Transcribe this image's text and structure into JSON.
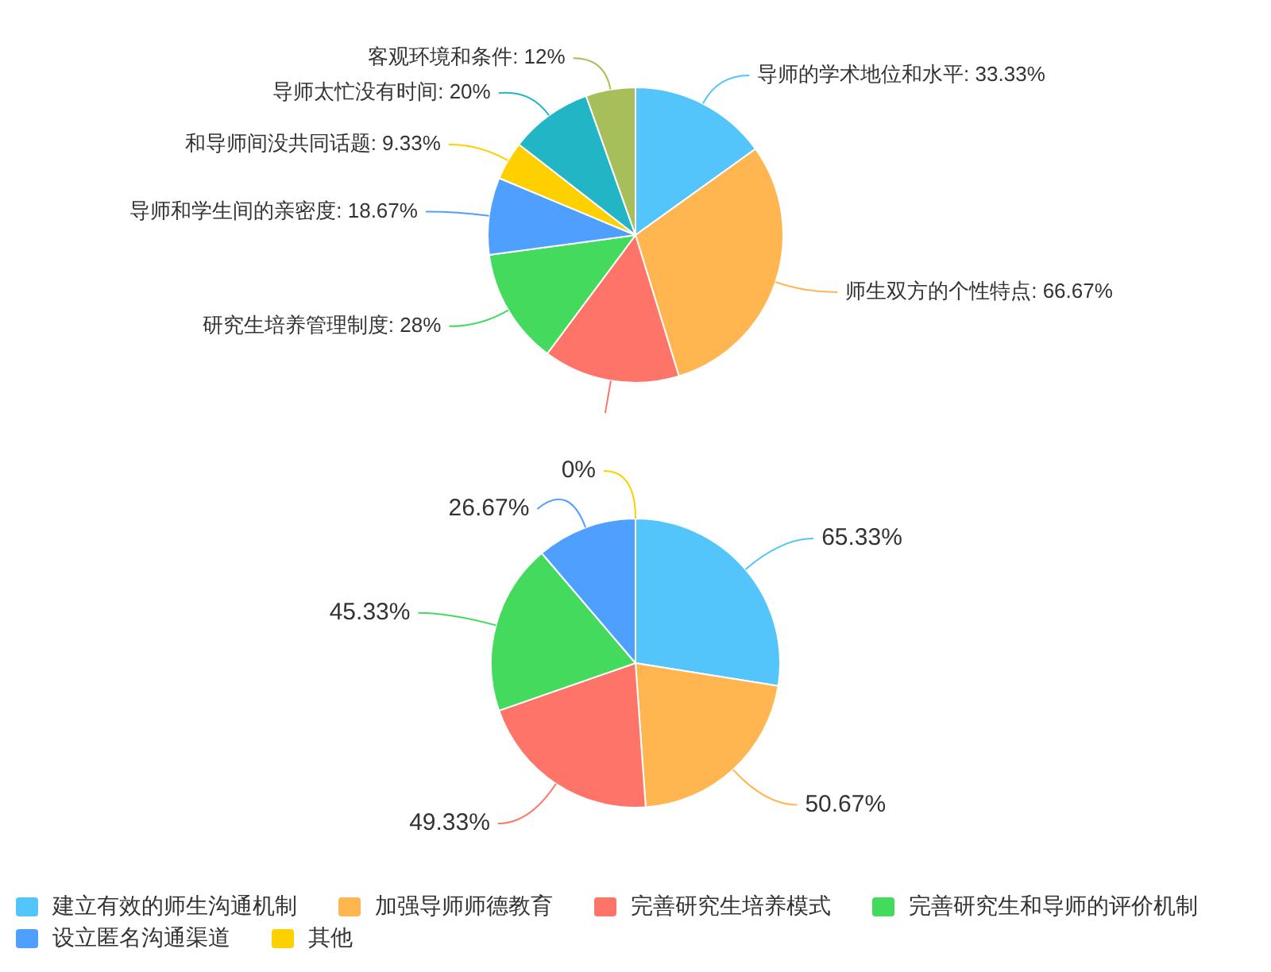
{
  "chart_data": [
    {
      "type": "pie",
      "categories": [
        "导师的学术地位和水平",
        "师生双方的个性特点",
        null,
        "研究生培养管理制度",
        "导师和学生间的亲密度",
        "和导师间没共同话题",
        "导师太忙没有时间",
        "客观环境和条件"
      ],
      "values": [
        33.33,
        66.67,
        33,
        28,
        18.67,
        9.33,
        20,
        12
      ],
      "colors": [
        "#53c5fb",
        "#ffb550",
        "#ff7468",
        "#44da5e",
        "#4e9ffe",
        "#ffd000",
        "#22b5c6",
        "#a6bf5b"
      ],
      "value_labels": [
        "33.33%",
        "66.67%",
        null,
        "28%",
        "18.67%",
        "9.33%",
        "20%",
        "12%"
      ]
    },
    {
      "type": "pie",
      "categories": [
        "建立有效的师生沟通机制",
        "加强导师师德教育",
        "完善研究生培养模式",
        "完善研究生和导师的评价机制",
        "设立匿名沟通渠道",
        "其他"
      ],
      "values": [
        65.33,
        50.67,
        49.33,
        45.33,
        26.67,
        0
      ],
      "colors": [
        "#53c5fb",
        "#ffb550",
        "#ff7468",
        "#44da5e",
        "#4e9ffe",
        "#ffd000"
      ],
      "value_labels": [
        "65.33%",
        "50.67%",
        "49.33%",
        "45.33%",
        "26.67%",
        "0%"
      ],
      "legend": "bottom"
    }
  ]
}
